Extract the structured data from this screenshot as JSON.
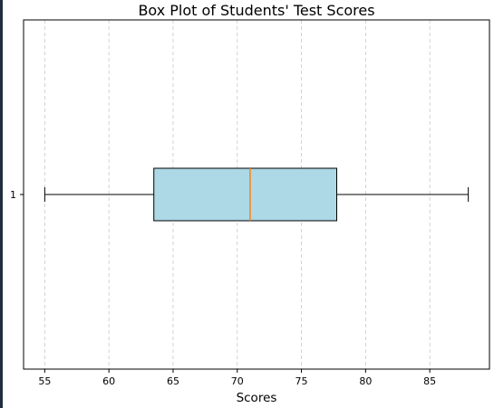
{
  "chart_data": {
    "type": "box",
    "title": "Box Plot of Students' Test Scores",
    "xlabel": "Scores",
    "ylabel": "",
    "orientation": "horizontal",
    "categories": [
      "1"
    ],
    "boxes": [
      {
        "label": "1",
        "whisker_low": 55,
        "q1": 63.5,
        "median": 71,
        "q3": 77.75,
        "whisker_high": 88
      }
    ],
    "xlim": [
      53.35,
      89.65
    ],
    "xticks": [
      55,
      60,
      65,
      70,
      75,
      80,
      85
    ],
    "xtick_labels": [
      "55",
      "60",
      "65",
      "70",
      "75",
      "80",
      "85"
    ],
    "grid": {
      "x": true,
      "style": "dashed"
    },
    "colors": {
      "box_fill": "#add8e6",
      "median": "#ff7f0e",
      "outline": "#000000",
      "grid": "#c8c8c8",
      "edge_bar": "#1f2d3d"
    }
  }
}
